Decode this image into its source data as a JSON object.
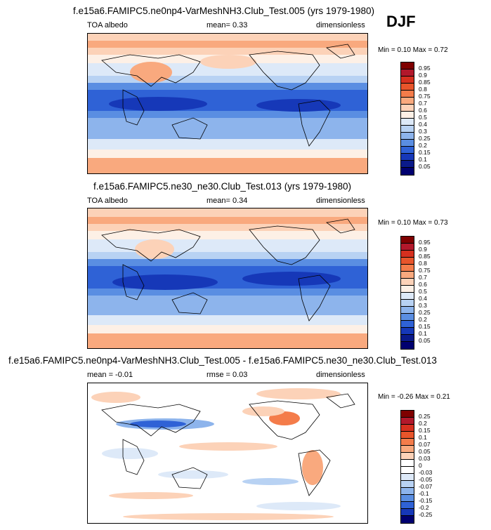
{
  "season": "DJF",
  "panels": [
    {
      "title": "f.e15a6.FAMIPC5.ne0np4-VarMeshNH3.Club_Test.005 (yrs 1979-1980)",
      "left_label": "TOA albedo",
      "mean_label": "mean=  0.33",
      "units": "dimensionless",
      "minmax": "Min =  0.10 Max =  0.72",
      "colorbar": [
        "0.95",
        "0.9",
        "0.85",
        "0.8",
        "0.75",
        "0.7",
        "0.6",
        "0.5",
        "0.4",
        "0.3",
        "0.25",
        "0.2",
        "0.15",
        "0.1",
        "0.05"
      ]
    },
    {
      "title": "f.e15a6.FAMIPC5.ne30_ne30.Club_Test.013 (yrs 1979-1980)",
      "left_label": "TOA albedo",
      "mean_label": "mean=  0.34",
      "units": "dimensionless",
      "minmax": "Min =  0.10 Max =  0.73",
      "colorbar": [
        "0.95",
        "0.9",
        "0.85",
        "0.8",
        "0.75",
        "0.7",
        "0.6",
        "0.5",
        "0.4",
        "0.3",
        "0.25",
        "0.2",
        "0.15",
        "0.1",
        "0.05"
      ]
    },
    {
      "title": "f.e15a6.FAMIPC5.ne0np4-VarMeshNH3.Club_Test.005 - f.e15a6.FAMIPC5.ne30_ne30.Club_Test.013",
      "left_label": "mean = -0.01",
      "mean_label": "rmse =  0.03",
      "units": "dimensionless",
      "minmax": "Min = -0.26 Max =  0.21",
      "colorbar": [
        "0.25",
        "0.2",
        "0.15",
        "0.1",
        "0.07",
        "0.05",
        "0.03",
        "0",
        "-0.03",
        "-0.05",
        "-0.07",
        "-0.1",
        "-0.15",
        "-0.2",
        "-0.25"
      ]
    }
  ],
  "colors": {
    "abs_scale": [
      "#7f0000",
      "#b2182b",
      "#d6301f",
      "#e8552b",
      "#f47c4a",
      "#f9a97e",
      "#fcd2b8",
      "#fdf0e6",
      "#dde9f8",
      "#b8d2f3",
      "#8db4ec",
      "#5a8ee2",
      "#2f62d6",
      "#1638b8",
      "#0a1a8a",
      "#000070"
    ],
    "diff_scale": [
      "#7f0000",
      "#b2182b",
      "#d6301f",
      "#e8552b",
      "#f47c4a",
      "#f9a97e",
      "#fcd2b8",
      "#ffffff",
      "#ffffff",
      "#dde9f8",
      "#b8d2f3",
      "#8db4ec",
      "#5a8ee2",
      "#2f62d6",
      "#1638b8",
      "#000070"
    ]
  }
}
